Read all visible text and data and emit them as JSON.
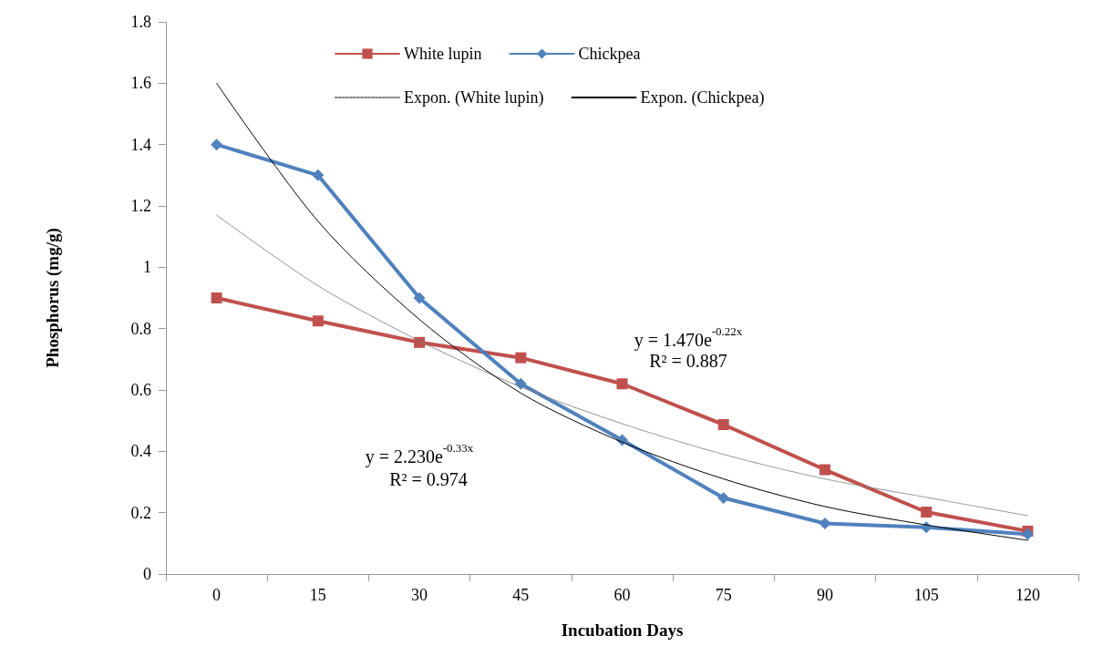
{
  "chart_data": {
    "type": "line",
    "xlabel": "Incubation Days",
    "ylabel": "Phosphorus (mg/g)",
    "categories": [
      "0",
      "15",
      "30",
      "45",
      "60",
      "75",
      "90",
      "105",
      "120"
    ],
    "series": [
      {
        "name": "White lupin",
        "color": "#c0504d",
        "marker": "square",
        "line_style": "solid",
        "values": [
          0.9,
          0.825,
          0.755,
          0.705,
          0.62,
          0.487,
          0.34,
          0.202,
          0.14
        ]
      },
      {
        "name": "Chickpea",
        "color": "#4f81bd",
        "marker": "diamond",
        "line_style": "solid",
        "values": [
          1.4,
          1.3,
          0.9,
          0.62,
          0.437,
          0.248,
          0.165,
          0.152,
          0.13
        ]
      },
      {
        "name": "Expon. (White lupin)",
        "color": "#808080",
        "marker": "none",
        "line_style": "dotted",
        "values": [
          1.17,
          0.94,
          0.76,
          0.61,
          0.49,
          0.39,
          0.31,
          0.25,
          0.19
        ]
      },
      {
        "name": "Expon. (Chickpea)",
        "color": "#000000",
        "marker": "none",
        "line_style": "solid",
        "values": [
          1.6,
          1.15,
          0.83,
          0.59,
          0.43,
          0.31,
          0.22,
          0.16,
          0.11
        ]
      }
    ],
    "ylim": [
      0,
      1.8
    ],
    "yticks": [
      0,
      0.2,
      0.4,
      0.6,
      0.8,
      1,
      1.2,
      1.4,
      1.6,
      1.8
    ],
    "grid": false,
    "legend": "top",
    "annotations": [
      "y = 1.470e$^{-0.22x}$",
      "R² = 0.887",
      "y = 2.230e$^{-0.33x}$",
      "R² = 0.974"
    ]
  }
}
